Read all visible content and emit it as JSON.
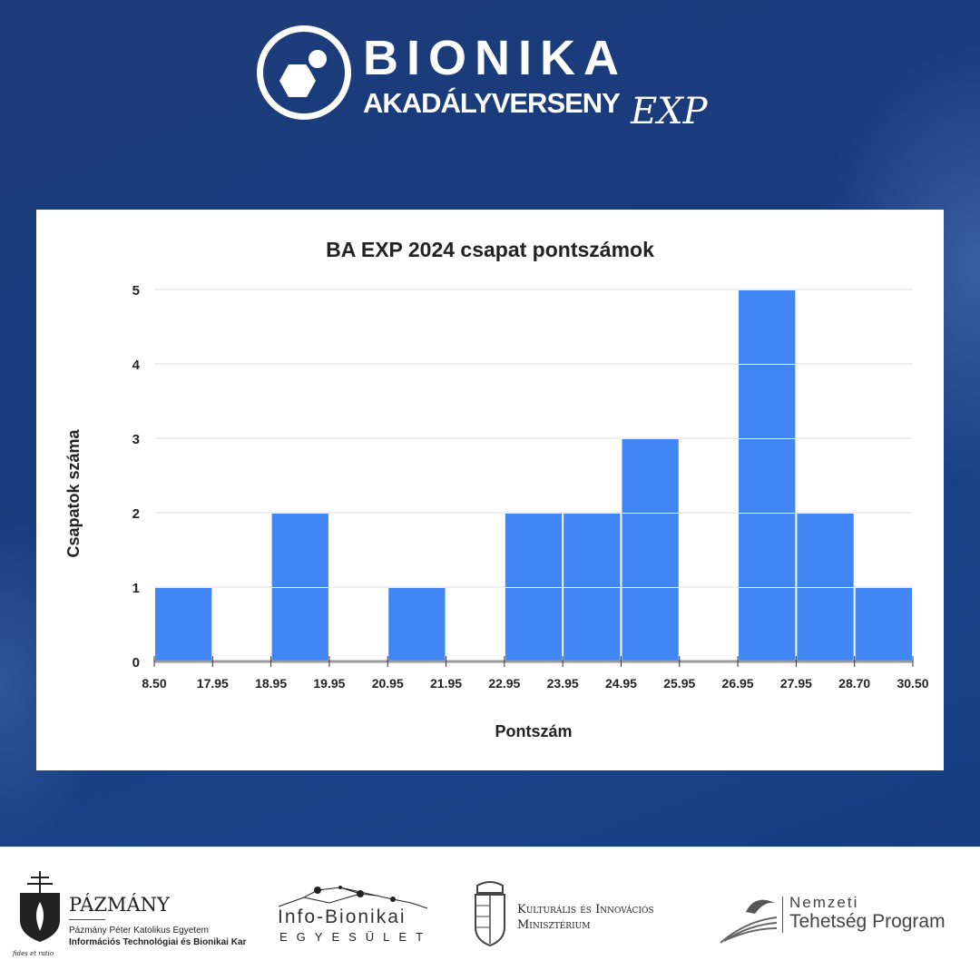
{
  "header": {
    "brand_line1": "BIONIKA",
    "brand_line2": "AKADÁLYVERSENY",
    "brand_suffix": "EXP"
  },
  "chart_data": {
    "type": "bar",
    "title": "BA EXP 2024 csapat pontszámok",
    "xlabel": "Pontszám",
    "ylabel": "Csapatok száma",
    "bin_edges": [
      "8.50",
      "17.95",
      "18.95",
      "19.95",
      "20.95",
      "21.95",
      "22.95",
      "23.95",
      "24.95",
      "25.95",
      "26.95",
      "27.95",
      "28.70",
      "30.50"
    ],
    "values": [
      1,
      0,
      2,
      0,
      1,
      0,
      2,
      2,
      3,
      0,
      5,
      2,
      1
    ],
    "yticks": [
      "0",
      "1",
      "2",
      "3",
      "4",
      "5"
    ],
    "ylim": [
      0,
      5
    ],
    "grid": true,
    "bar_color": "#4285f4"
  },
  "footer": {
    "pazmany": {
      "name": "PÁZMÁNY",
      "line1": "Pázmány Péter Katolikus Egyetem",
      "line2": "Információs Technológiai és Bionikai Kar",
      "motto": "fides et ratio"
    },
    "infobionikai": {
      "name": "Info-Bionikai",
      "sub": "EGYESÜLET"
    },
    "ministry": {
      "line1": "Kulturális és Innovációs",
      "line2": "Minisztérium"
    },
    "ntp": {
      "line1": "Nemzeti",
      "line2": "Tehetség Program"
    }
  }
}
